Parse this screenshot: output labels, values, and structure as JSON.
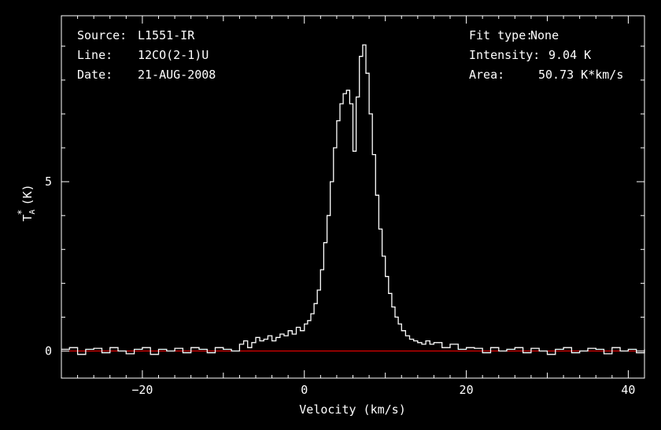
{
  "header_left": {
    "source_label": "Source:",
    "source_value": "L1551-IR",
    "line_label": "Line:",
    "line_value": "12CO(2-1)U",
    "date_label": "Date:",
    "date_value": "21-AUG-2008"
  },
  "header_right": {
    "fit_label": "Fit type:",
    "fit_value": "None",
    "intensity_label": "Intensity:",
    "intensity_value": "9.04 K",
    "area_label": "Area:",
    "area_value": "50.73 K*km/s"
  },
  "chart_data": {
    "type": "line",
    "title": "",
    "xlabel": "Velocity (km/s)",
    "ylabel_main": "T",
    "ylabel_sup": "*",
    "ylabel_sub": "A",
    "ylabel_unit": "(K)",
    "xlim": [
      -30,
      42
    ],
    "ylim": [
      -0.8,
      9.9
    ],
    "x_ticks": [
      -20,
      0,
      20,
      40
    ],
    "x_tick_labels": [
      "−20",
      "0",
      "20",
      "40"
    ],
    "y_ticks": [
      0,
      5
    ],
    "y_tick_labels": [
      "0",
      "5"
    ],
    "colors": {
      "spectrum": "#ffffff",
      "baseline": "#ff0000",
      "axes": "#ffffff",
      "background": "#000000"
    },
    "baseline_value": 0,
    "series": [
      {
        "style": "step",
        "x": [
          -30,
          -29,
          -28,
          -27,
          -26,
          -25,
          -24,
          -23,
          -22,
          -21,
          -20,
          -19,
          -18,
          -17,
          -16,
          -15,
          -14,
          -13,
          -12,
          -11,
          -10,
          -9,
          -8,
          -7.5,
          -7,
          -6.5,
          -6,
          -5.5,
          -5,
          -4.5,
          -4,
          -3.5,
          -3,
          -2.5,
          -2,
          -1.5,
          -1,
          -0.5,
          0,
          0.4,
          0.8,
          1.2,
          1.6,
          2,
          2.4,
          2.8,
          3.2,
          3.6,
          4,
          4.4,
          4.8,
          5.2,
          5.6,
          6,
          6.4,
          6.8,
          7.2,
          7.6,
          8,
          8.4,
          8.8,
          9.2,
          9.6,
          10,
          10.4,
          10.8,
          11.2,
          11.6,
          12,
          12.5,
          13,
          13.5,
          14,
          14.5,
          15,
          15.5,
          16,
          17,
          18,
          19,
          20,
          21,
          22,
          23,
          24,
          25,
          26,
          27,
          28,
          29,
          30,
          31,
          32,
          33,
          34,
          35,
          36,
          37,
          38,
          39,
          40,
          41,
          42
        ],
        "y": [
          0.05,
          0.1,
          -0.1,
          0.05,
          0.08,
          -0.05,
          0.1,
          0.0,
          -0.08,
          0.05,
          0.1,
          -0.1,
          0.05,
          0.0,
          0.08,
          -0.05,
          0.1,
          0.05,
          -0.05,
          0.1,
          0.05,
          0.0,
          0.2,
          0.3,
          0.1,
          0.25,
          0.4,
          0.3,
          0.35,
          0.45,
          0.3,
          0.4,
          0.5,
          0.45,
          0.6,
          0.5,
          0.7,
          0.6,
          0.8,
          0.9,
          1.1,
          1.4,
          1.8,
          2.4,
          3.2,
          4.0,
          5.0,
          6.0,
          6.8,
          7.3,
          7.6,
          7.7,
          7.3,
          5.9,
          7.5,
          8.7,
          9.04,
          8.2,
          7.0,
          5.8,
          4.6,
          3.6,
          2.8,
          2.2,
          1.7,
          1.3,
          1.0,
          0.8,
          0.6,
          0.45,
          0.35,
          0.3,
          0.25,
          0.2,
          0.3,
          0.2,
          0.25,
          0.1,
          0.2,
          0.05,
          0.1,
          0.08,
          -0.05,
          0.1,
          0.0,
          0.05,
          0.1,
          -0.05,
          0.08,
          0.0,
          -0.1,
          0.05,
          0.1,
          -0.05,
          0.0,
          0.08,
          0.05,
          -0.08,
          0.1,
          0.0,
          0.05,
          -0.05,
          0.05
        ]
      }
    ]
  }
}
